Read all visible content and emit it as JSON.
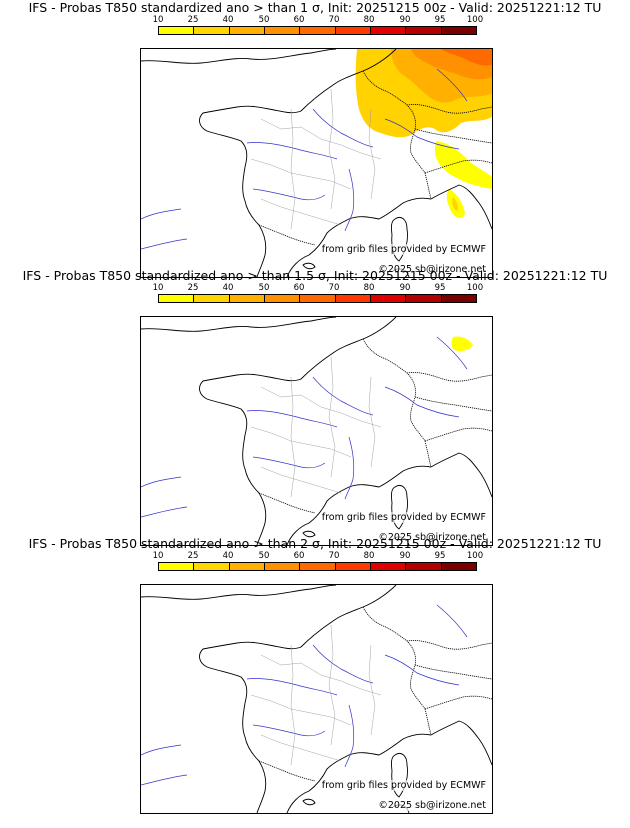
{
  "legend": {
    "ticks": [
      "10",
      "25",
      "40",
      "50",
      "60",
      "70",
      "80",
      "90",
      "95",
      "100"
    ],
    "colors": [
      "#ffff00",
      "#ffd700",
      "#ffb000",
      "#ff9000",
      "#ff6a00",
      "#ff3a00",
      "#e00000",
      "#b00000",
      "#7a0000"
    ]
  },
  "credits": {
    "grib": "from grib files provided by ECMWF",
    "copyright": "©2025 sb@irizone.net"
  },
  "panels": [
    {
      "title": "IFS - Probas T850  standardized ano > than 1 σ, Init: 20251215 00z - Valid: 20251221:12 TU"
    },
    {
      "title": "IFS - Probas T850  standardized ano > than 1.5 σ, Init: 20251215 00z - Valid: 20251221:12 TU"
    },
    {
      "title": "IFS - Probas T850  standardized ano > than 2 σ, Init: 20251215 00z - Valid: 20251221:12 TU"
    }
  ]
}
